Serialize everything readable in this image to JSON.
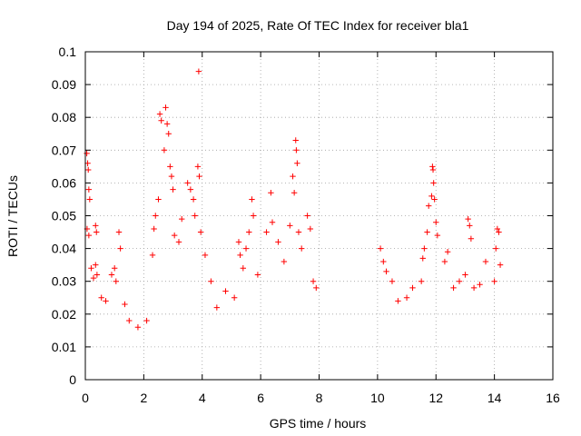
{
  "chart_data": {
    "type": "scatter",
    "title": "Day 194 of 2025, Rate Of TEC Index for receiver bla1",
    "xlabel": "GPS time / hours",
    "ylabel": "ROTI / TECUs",
    "xlim": [
      0,
      16
    ],
    "ylim": [
      0,
      0.1
    ],
    "xticks": [
      "0",
      "2",
      "4",
      "6",
      "8",
      "10",
      "12",
      "14",
      "16"
    ],
    "yticks": [
      "0",
      "0.01",
      "0.02",
      "0.03",
      "0.04",
      "0.05",
      "0.06",
      "0.07",
      "0.08",
      "0.09",
      "0.1"
    ],
    "grid": true,
    "marker": "+",
    "marker_color": "#ff0000",
    "data_gap_hours": [
      8.0,
      10.1
    ],
    "series": [
      {
        "values": [
          [
            0.05,
            0.069
          ],
          [
            0.08,
            0.066
          ],
          [
            0.1,
            0.064
          ],
          [
            0.12,
            0.058
          ],
          [
            0.15,
            0.055
          ],
          [
            0.06,
            0.046
          ],
          [
            0.12,
            0.044
          ],
          [
            0.2,
            0.034
          ],
          [
            0.28,
            0.031
          ],
          [
            0.35,
            0.035
          ],
          [
            0.4,
            0.032
          ],
          [
            0.35,
            0.047
          ],
          [
            0.38,
            0.045
          ],
          [
            0.55,
            0.025
          ],
          [
            0.7,
            0.024
          ],
          [
            0.9,
            0.032
          ],
          [
            1.0,
            0.034
          ],
          [
            1.05,
            0.03
          ],
          [
            1.15,
            0.045
          ],
          [
            1.2,
            0.04
          ],
          [
            1.35,
            0.023
          ],
          [
            1.5,
            0.018
          ],
          [
            1.8,
            0.016
          ],
          [
            2.1,
            0.018
          ],
          [
            2.3,
            0.038
          ],
          [
            2.35,
            0.046
          ],
          [
            2.4,
            0.05
          ],
          [
            2.5,
            0.055
          ],
          [
            2.55,
            0.081
          ],
          [
            2.6,
            0.079
          ],
          [
            2.7,
            0.07
          ],
          [
            2.75,
            0.083
          ],
          [
            2.8,
            0.078
          ],
          [
            2.85,
            0.075
          ],
          [
            2.9,
            0.065
          ],
          [
            2.95,
            0.062
          ],
          [
            3.0,
            0.058
          ],
          [
            3.05,
            0.044
          ],
          [
            3.2,
            0.042
          ],
          [
            3.3,
            0.049
          ],
          [
            3.5,
            0.06
          ],
          [
            3.6,
            0.058
          ],
          [
            3.7,
            0.055
          ],
          [
            3.75,
            0.05
          ],
          [
            3.85,
            0.065
          ],
          [
            3.88,
            0.094
          ],
          [
            3.9,
            0.062
          ],
          [
            3.95,
            0.045
          ],
          [
            4.1,
            0.038
          ],
          [
            4.3,
            0.03
          ],
          [
            4.5,
            0.022
          ],
          [
            4.8,
            0.027
          ],
          [
            5.1,
            0.025
          ],
          [
            5.25,
            0.042
          ],
          [
            5.3,
            0.038
          ],
          [
            5.4,
            0.034
          ],
          [
            5.5,
            0.04
          ],
          [
            5.6,
            0.045
          ],
          [
            5.7,
            0.055
          ],
          [
            5.75,
            0.05
          ],
          [
            5.9,
            0.032
          ],
          [
            6.2,
            0.045
          ],
          [
            6.35,
            0.057
          ],
          [
            6.4,
            0.048
          ],
          [
            6.6,
            0.042
          ],
          [
            6.8,
            0.036
          ],
          [
            7.0,
            0.047
          ],
          [
            7.1,
            0.062
          ],
          [
            7.15,
            0.057
          ],
          [
            7.2,
            0.073
          ],
          [
            7.22,
            0.07
          ],
          [
            7.25,
            0.066
          ],
          [
            7.3,
            0.045
          ],
          [
            7.4,
            0.04
          ],
          [
            7.6,
            0.05
          ],
          [
            7.7,
            0.046
          ],
          [
            7.8,
            0.03
          ],
          [
            7.9,
            0.028
          ],
          [
            10.1,
            0.04
          ],
          [
            10.2,
            0.036
          ],
          [
            10.3,
            0.033
          ],
          [
            10.5,
            0.03
          ],
          [
            10.7,
            0.024
          ],
          [
            11.0,
            0.025
          ],
          [
            11.2,
            0.028
          ],
          [
            11.5,
            0.03
          ],
          [
            11.55,
            0.037
          ],
          [
            11.6,
            0.04
          ],
          [
            11.7,
            0.045
          ],
          [
            11.75,
            0.053
          ],
          [
            11.85,
            0.056
          ],
          [
            11.88,
            0.065
          ],
          [
            11.9,
            0.064
          ],
          [
            11.92,
            0.06
          ],
          [
            11.95,
            0.055
          ],
          [
            12.0,
            0.048
          ],
          [
            12.05,
            0.044
          ],
          [
            12.3,
            0.036
          ],
          [
            12.4,
            0.039
          ],
          [
            12.6,
            0.028
          ],
          [
            12.8,
            0.03
          ],
          [
            13.0,
            0.032
          ],
          [
            13.1,
            0.049
          ],
          [
            13.15,
            0.047
          ],
          [
            13.2,
            0.043
          ],
          [
            13.3,
            0.028
          ],
          [
            13.5,
            0.029
          ],
          [
            13.7,
            0.036
          ],
          [
            14.0,
            0.03
          ],
          [
            14.05,
            0.04
          ],
          [
            14.1,
            0.046
          ],
          [
            14.15,
            0.045
          ],
          [
            14.2,
            0.035
          ]
        ]
      }
    ]
  }
}
